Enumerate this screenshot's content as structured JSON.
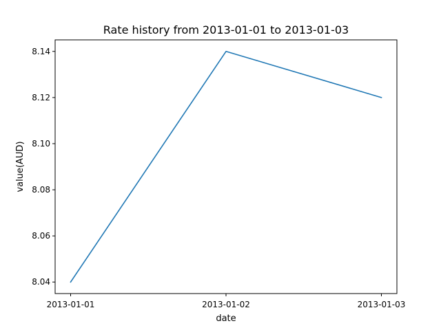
{
  "chart_data": {
    "type": "line",
    "title": "Rate history from 2013-01-01 to 2013-01-03",
    "xlabel": "date",
    "ylabel": "value(AUD)",
    "categories": [
      "2013-01-01",
      "2013-01-02",
      "2013-01-03"
    ],
    "series": [
      {
        "values": [
          8.04,
          8.14,
          8.12
        ],
        "color": "#1f77b4"
      }
    ],
    "ylim": [
      8.035,
      8.145
    ],
    "yticks": [
      "8.04",
      "8.06",
      "8.08",
      "8.10",
      "8.12",
      "8.14"
    ],
    "grid": false,
    "legend": "none"
  }
}
